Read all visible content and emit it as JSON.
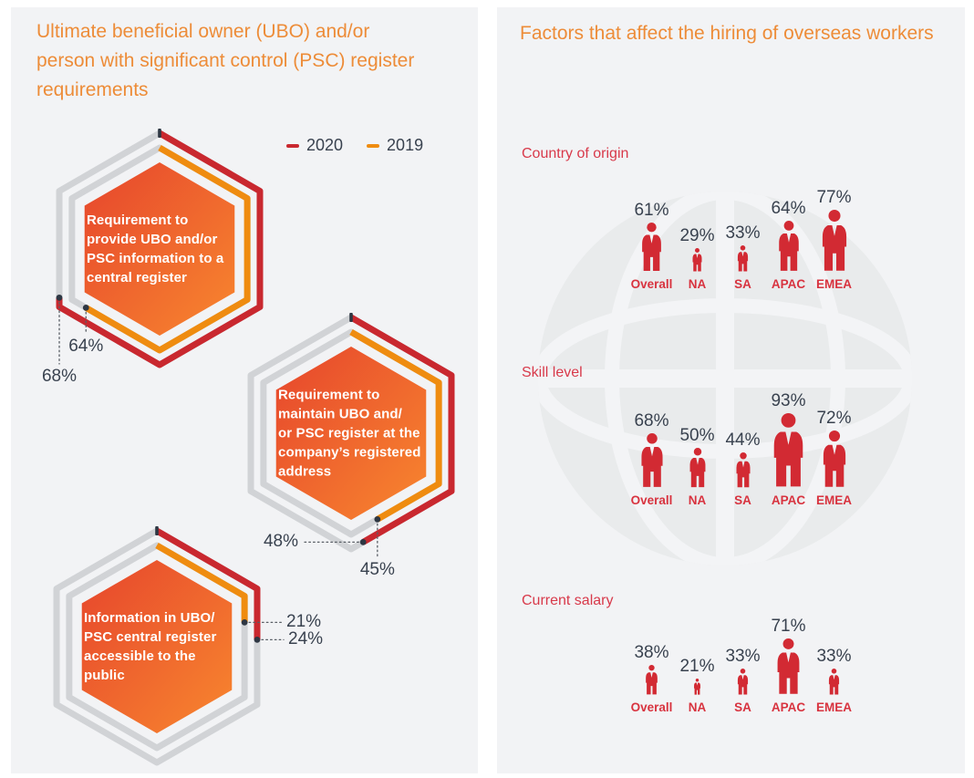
{
  "left_panel": {
    "title": "Ultimate beneficial owner (UBO) and/or\nperson with significant control (PSC) register\nrequirements",
    "hex_texts": [
      "Requirement to\nprovide UBO and/or\nPSC information to a\ncentral register",
      "Requirement to\nmaintain UBO and/\nor PSC register at the\ncompany’s registered\naddress",
      "Information in UBO/\nPSC central register\naccessible to the\npublic"
    ]
  },
  "right_panel": {
    "title": "Factors that affect the hiring of overseas workers"
  },
  "colors": {
    "panel_bg": "#f2f3f5",
    "title_orange": "#ed8c38",
    "series_2020": "#c9282f",
    "series_2019": "#ef8c10",
    "ring_gray": "#d1d3d6",
    "hex_gradient_start": "#e6452d",
    "hex_gradient_end": "#f8872e",
    "navy_text": "#39424f",
    "dot_dark": "#2e3743",
    "leader_gray": "#5a5f66",
    "section_red": "#d8394a",
    "icon_red": "#d22a33",
    "region_label_red": "#d8333f",
    "globe_gray": "#e9ebec",
    "globe_stripe": "#f3f4f6"
  },
  "chart_data": [
    {
      "type": "bar",
      "title": "Ultimate beneficial owner (UBO) and/or person with significant control (PSC) register requirements",
      "categories": [
        "Requirement to provide UBO and/or PSC information to a central register",
        "Requirement to maintain UBO and/or PSC register at the company’s registered address",
        "Information in UBO/PSC central register accessible to the public"
      ],
      "series": [
        {
          "name": "2020",
          "values": [
            68,
            48,
            24
          ]
        },
        {
          "name": "2019",
          "values": [
            64,
            45,
            21
          ]
        }
      ],
      "unit": "%",
      "legend_position": "top-right",
      "note": "rendered as hexagonal ring gauges, arc = % of perimeter clockwise from top vertex"
    },
    {
      "type": "bar",
      "title": "Factors that affect the hiring of overseas workers",
      "categories": [
        "Overall",
        "NA",
        "SA",
        "APAC",
        "EMEA"
      ],
      "series": [
        {
          "name": "Country of origin",
          "values": [
            61,
            29,
            33,
            64,
            77
          ]
        },
        {
          "name": "Skill level",
          "values": [
            68,
            50,
            44,
            93,
            72
          ]
        },
        {
          "name": "Current salary",
          "values": [
            38,
            21,
            33,
            71,
            33
          ]
        }
      ],
      "unit": "%",
      "note": "rendered as person pictograms whose height is proportional to the value"
    }
  ]
}
